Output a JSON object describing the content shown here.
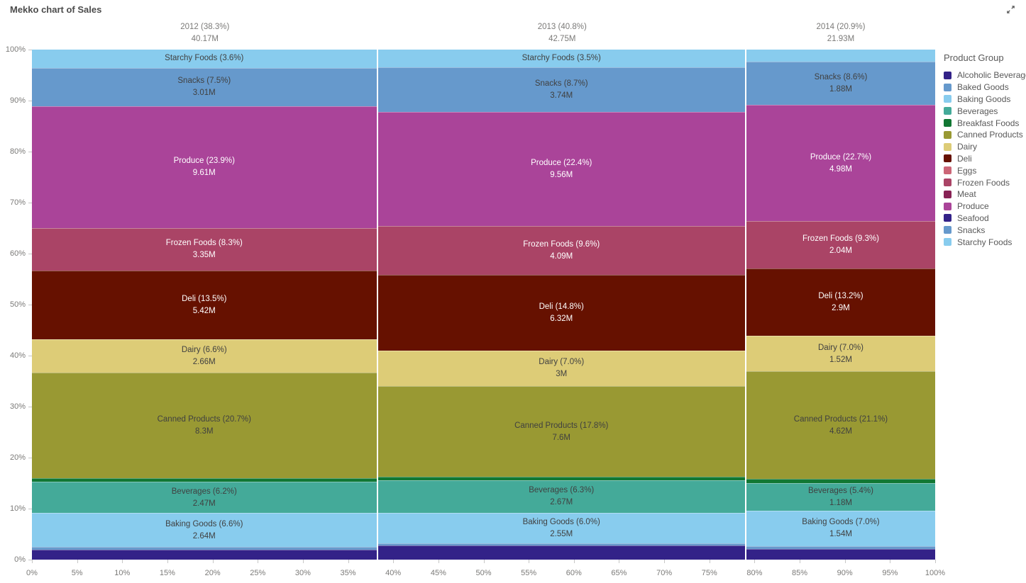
{
  "chart_data": {
    "type": "mekko",
    "title": "Mekko chart of Sales",
    "x_axis": {
      "unit": "percent",
      "ticks": [
        "0%",
        "5%",
        "10%",
        "15%",
        "20%",
        "25%",
        "30%",
        "35%",
        "40%",
        "45%",
        "50%",
        "55%",
        "60%",
        "65%",
        "70%",
        "75%",
        "80%",
        "85%",
        "90%",
        "95%",
        "100%"
      ]
    },
    "y_axis": {
      "unit": "percent",
      "ticks": [
        "0%",
        "10%",
        "20%",
        "30%",
        "40%",
        "50%",
        "60%",
        "70%",
        "80%",
        "90%",
        "100%"
      ]
    },
    "legend": {
      "title": "Product Group",
      "position": "right",
      "items": [
        {
          "name": "Alcoholic Beverages",
          "color": "#332288"
        },
        {
          "name": "Baked Goods",
          "color": "#6699CC"
        },
        {
          "name": "Baking Goods",
          "color": "#88CCEE"
        },
        {
          "name": "Beverages",
          "color": "#44AA99"
        },
        {
          "name": "Breakfast Foods",
          "color": "#117733"
        },
        {
          "name": "Canned Products",
          "color": "#999933"
        },
        {
          "name": "Dairy",
          "color": "#DDCC77"
        },
        {
          "name": "Deli",
          "color": "#661100"
        },
        {
          "name": "Eggs",
          "color": "#CC6677"
        },
        {
          "name": "Frozen Foods",
          "color": "#AA4466"
        },
        {
          "name": "Meat",
          "color": "#882255"
        },
        {
          "name": "Produce",
          "color": "#AA4499"
        },
        {
          "name": "Seafood",
          "color": "#332288"
        },
        {
          "name": "Snacks",
          "color": "#6699CC"
        },
        {
          "name": "Starchy Foods",
          "color": "#88CCEE"
        }
      ]
    },
    "columns": [
      {
        "label": "2012 (38.3%)",
        "total": "40.17M",
        "width_pct": 38.3,
        "segments": [
          {
            "group": "Starchy Foods",
            "pct": 3.6,
            "label": "Starchy Foods (3.6%)",
            "value": ""
          },
          {
            "group": "Snacks",
            "pct": 7.5,
            "label": "Snacks (7.5%)",
            "value": "3.01M"
          },
          {
            "group": "Produce",
            "pct": 23.9,
            "label": "Produce (23.9%)",
            "value": "9.61M"
          },
          {
            "group": "Frozen Foods",
            "pct": 8.3,
            "label": "Frozen Foods (8.3%)",
            "value": "3.35M"
          },
          {
            "group": "Deli",
            "pct": 13.5,
            "label": "Deli (13.5%)",
            "value": "5.42M"
          },
          {
            "group": "Dairy",
            "pct": 6.6,
            "label": "Dairy (6.6%)",
            "value": "2.66M"
          },
          {
            "group": "Canned Products",
            "pct": 20.7,
            "label": "Canned Products (20.7%)",
            "value": "8.3M"
          },
          {
            "group": "Breakfast Foods",
            "pct": 0.6,
            "label": "",
            "value": ""
          },
          {
            "group": "Beverages",
            "pct": 6.2,
            "label": "Beverages (6.2%)",
            "value": "2.47M"
          },
          {
            "group": "Baking Goods",
            "pct": 6.6,
            "label": "Baking Goods (6.6%)",
            "value": "2.64M"
          },
          {
            "group": "Baked Goods",
            "pct": 0.5,
            "label": "",
            "value": ""
          },
          {
            "group": "Alcoholic Beverages",
            "pct": 2.0,
            "label": "",
            "value": ""
          }
        ]
      },
      {
        "label": "2013 (40.8%)",
        "total": "42.75M",
        "width_pct": 40.8,
        "segments": [
          {
            "group": "Starchy Foods",
            "pct": 3.5,
            "label": "Starchy Foods (3.5%)",
            "value": ""
          },
          {
            "group": "Snacks",
            "pct": 8.7,
            "label": "Snacks (8.7%)",
            "value": "3.74M"
          },
          {
            "group": "Produce",
            "pct": 22.4,
            "label": "Produce (22.4%)",
            "value": "9.56M"
          },
          {
            "group": "Frozen Foods",
            "pct": 9.6,
            "label": "Frozen Foods (9.6%)",
            "value": "4.09M"
          },
          {
            "group": "Deli",
            "pct": 14.8,
            "label": "Deli (14.8%)",
            "value": "6.32M"
          },
          {
            "group": "Dairy",
            "pct": 7.0,
            "label": "Dairy (7.0%)",
            "value": "3M"
          },
          {
            "group": "Canned Products",
            "pct": 17.8,
            "label": "Canned Products (17.8%)",
            "value": "7.6M"
          },
          {
            "group": "Breakfast Foods",
            "pct": 0.7,
            "label": "",
            "value": ""
          },
          {
            "group": "Beverages",
            "pct": 6.3,
            "label": "Beverages (6.3%)",
            "value": "2.67M"
          },
          {
            "group": "Baking Goods",
            "pct": 6.0,
            "label": "Baking Goods (6.0%)",
            "value": "2.55M"
          },
          {
            "group": "Baked Goods",
            "pct": 0.5,
            "label": "",
            "value": ""
          },
          {
            "group": "Alcoholic Beverages",
            "pct": 2.7,
            "label": "",
            "value": ""
          }
        ]
      },
      {
        "label": "2014 (20.9%)",
        "total": "21.93M",
        "width_pct": 20.9,
        "segments": [
          {
            "group": "Starchy Foods",
            "pct": 2.3,
            "label": "",
            "value": ""
          },
          {
            "group": "Snacks",
            "pct": 8.6,
            "label": "Snacks (8.6%)",
            "value": "1.88M"
          },
          {
            "group": "Produce",
            "pct": 22.7,
            "label": "Produce (22.7%)",
            "value": "4.98M"
          },
          {
            "group": "Frozen Foods",
            "pct": 9.3,
            "label": "Frozen Foods (9.3%)",
            "value": "2.04M"
          },
          {
            "group": "Deli",
            "pct": 13.2,
            "label": "Deli (13.2%)",
            "value": "2.9M"
          },
          {
            "group": "Dairy",
            "pct": 7.0,
            "label": "Dairy (7.0%)",
            "value": "1.52M"
          },
          {
            "group": "Canned Products",
            "pct": 21.1,
            "label": "Canned Products (21.1%)",
            "value": "4.62M"
          },
          {
            "group": "Breakfast Foods",
            "pct": 0.8,
            "label": "",
            "value": ""
          },
          {
            "group": "Beverages",
            "pct": 5.4,
            "label": "Beverages (5.4%)",
            "value": "1.18M"
          },
          {
            "group": "Baking Goods",
            "pct": 7.0,
            "label": "Baking Goods (7.0%)",
            "value": "1.54M"
          },
          {
            "group": "Baked Goods",
            "pct": 0.5,
            "label": "",
            "value": ""
          },
          {
            "group": "Alcoholic Beverages",
            "pct": 2.1,
            "label": "",
            "value": ""
          }
        ]
      }
    ],
    "text_colors": {
      "on_dark": "#ffffff",
      "on_light": "#404040"
    },
    "axis_label_color": "#7b7a78"
  }
}
